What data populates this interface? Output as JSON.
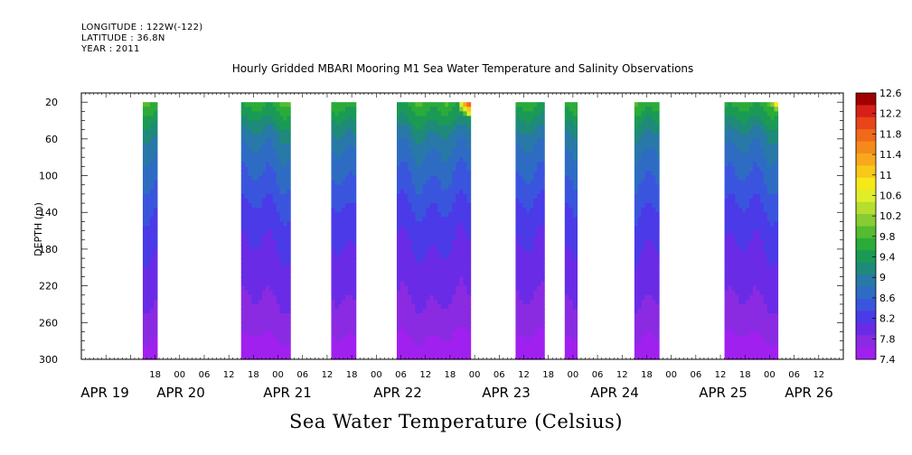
{
  "header": {
    "longitude": "LONGITUDE : 122W(-122)",
    "latitude": "LATITUDE : 36.8N",
    "year": "YEAR : 2011"
  },
  "title": "Hourly Gridded MBARI Mooring M1 Sea Water Temperature and Salinity Observations",
  "footer_title": "Sea Water Temperature (Celsius)",
  "colors": {
    "colorbar": [
      "#a020f0",
      "#8a2be2",
      "#6a2be6",
      "#4a3ae8",
      "#3a55dd",
      "#2e6cc4",
      "#2878a8",
      "#1f8a7a",
      "#1a9a55",
      "#2aab3a",
      "#55bb30",
      "#88cc33",
      "#b6dd30",
      "#e0ee2a",
      "#f7e81a",
      "#f8c81a",
      "#f8a81a",
      "#f58a1a",
      "#f06a1a",
      "#e8451a",
      "#d82018",
      "#a00000"
    ]
  },
  "chart_data": {
    "type": "heatmap",
    "ylabel": "DEPTH (m)",
    "y_ticks": [
      20,
      60,
      100,
      140,
      180,
      220,
      260,
      300
    ],
    "ylim": [
      300,
      10
    ],
    "x_hour_ticks": [
      "18",
      "00",
      "06",
      "12",
      "18",
      "00",
      "06",
      "12",
      "18",
      "00",
      "06",
      "12",
      "18",
      "00",
      "06",
      "12",
      "18",
      "00",
      "06",
      "12",
      "18",
      "00",
      "06",
      "12",
      "18",
      "00",
      "06",
      "12"
    ],
    "x_day_labels": [
      "APR 19",
      "APR 20",
      "APR 21",
      "APR 22",
      "APR 23",
      "APR 24",
      "APR 25",
      "APR 26"
    ],
    "x_range_hours": [
      0,
      186
    ],
    "colorbar_ticks": [
      "12.6",
      "12.2",
      "11.8",
      "11.4",
      "11",
      "10.6",
      "10.2",
      "9.8",
      "9.4",
      "9",
      "8.6",
      "8.2",
      "7.8",
      "7.4"
    ],
    "colorbar_range": [
      7.4,
      12.6
    ],
    "data_blocks_hours": [
      [
        15,
        18.5
      ],
      [
        39,
        51
      ],
      [
        61,
        67
      ],
      [
        77,
        95
      ],
      [
        106,
        113
      ],
      [
        118,
        121
      ],
      [
        135,
        141
      ],
      [
        157,
        170
      ]
    ],
    "profile_depths": [
      20,
      40,
      60,
      80,
      100,
      120,
      140,
      160,
      180,
      200,
      220,
      240,
      260,
      280,
      300
    ],
    "profile_temps": [
      9.7,
      9.3,
      8.95,
      8.75,
      8.6,
      8.45,
      8.3,
      8.2,
      8.1,
      8.0,
      7.95,
      7.85,
      7.75,
      7.6,
      7.5
    ],
    "hotspots": [
      {
        "hour": 95,
        "depth": 20,
        "temp": 12.0
      },
      {
        "hour": 170,
        "depth": 20,
        "temp": 11.0
      }
    ]
  }
}
